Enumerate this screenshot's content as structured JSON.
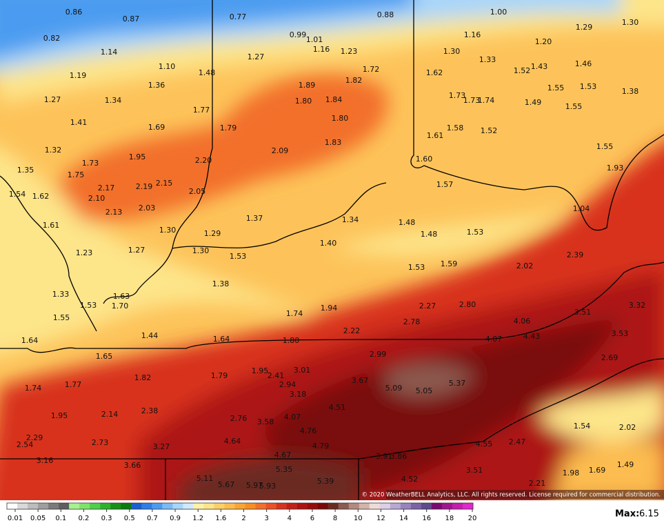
{
  "map": {
    "labels": [
      "0.86",
      "0.87",
      "0.77",
      "0.88",
      "1.00",
      "1.29",
      "1.30",
      "0.82",
      "0.99",
      "1.01",
      "1.16",
      "1.23",
      "1.16",
      "1.20",
      "1.14",
      "1.27",
      "1.30",
      "1.33",
      "1.46",
      "1.10",
      "1.48",
      "1.72",
      "1.62",
      "1.52",
      "1.43",
      "1.19",
      "1.36",
      "1.89",
      "1.82",
      "1.55",
      "1.53",
      "1.38",
      "1.27",
      "1.34",
      "1.80",
      "1.84",
      "1.73",
      "1.73",
      "1.74",
      "1.49",
      "1.55",
      "1.77",
      "1.80",
      "1.41",
      "1.69",
      "1.79",
      "1.58",
      "1.52",
      "1.61",
      "1.83",
      "1.55",
      "1.32",
      "2.09",
      "1.95",
      "2.20",
      "1.60",
      "1.93",
      "1.73",
      "1.35",
      "1.75",
      "2.15",
      "1.57",
      "2.17",
      "2.19",
      "2.05",
      "1.54",
      "1.62",
      "2.10",
      "2.13",
      "2.03",
      "1.04",
      "1.37",
      "1.34",
      "1.48",
      "1.61",
      "1.30",
      "1.29",
      "1.48",
      "1.53",
      "1.40",
      "1.23",
      "1.27",
      "1.30",
      "1.53",
      "2.39",
      "1.53",
      "1.59",
      "2.02",
      "1.38",
      "1.33",
      "1.63",
      "1.53",
      "1.70",
      "2.27",
      "2.80",
      "3.32",
      "1.94",
      "1.74",
      "3.51",
      "1.55",
      "2.78",
      "4.06",
      "2.22",
      "1.44",
      "1.64",
      "1.80",
      "4.07",
      "4.43",
      "3.53",
      "1.64",
      "1.65",
      "2.99",
      "2.69",
      "3.01",
      "1.95",
      "2.41",
      "1.79",
      "1.82",
      "3.67",
      "5.37",
      "2.94",
      "1.77",
      "1.74",
      "5.09",
      "5.05",
      "3.18",
      "4.51",
      "2.38",
      "2.14",
      "1.95",
      "2.76",
      "4.07",
      "3.58",
      "1.54",
      "2.02",
      "4.76",
      "2.29",
      "2.73",
      "4.64",
      "4.79",
      "3.27",
      "4.55",
      "2.47",
      "2.54",
      "4.67",
      "3.91",
      "3.86",
      "3.16",
      "3.66",
      "1.49",
      "5.35",
      "3.51",
      "1.98",
      "1.69",
      "4.52",
      "5.11",
      "5.39",
      "5.67",
      "5.97",
      "5.93",
      "2.21"
    ],
    "copyright": "© 2020 WeatherBELL Analytics, LLC. All rights reserved. License required for commercial distribution."
  },
  "legend": {
    "ticks": [
      "0.01",
      "0.05",
      "0.1",
      "0.2",
      "0.3",
      "0.5",
      "0.7",
      "0.9",
      "1.2",
      "1.6",
      "2",
      "3",
      "4",
      "6",
      "8",
      "10",
      "12",
      "14",
      "16",
      "18",
      "20"
    ],
    "colors": [
      "#ffffff",
      "#d9d9d9",
      "#bdbdbd",
      "#9e9e9e",
      "#7a7a7a",
      "#5e5e5e",
      "#a6f28f",
      "#7ee36b",
      "#4fcf4a",
      "#2db22d",
      "#169116",
      "#0c7a0c",
      "#1d5fd1",
      "#2f7ee6",
      "#4b9cf0",
      "#7cbaf6",
      "#a8d6fa",
      "#cfeafc",
      "#fff2a8",
      "#fde58a",
      "#fdd067",
      "#fcbc4f",
      "#f9a535",
      "#f78e23",
      "#f2702a",
      "#ea5225",
      "#d8331f",
      "#c41e18",
      "#ad1212",
      "#950c0c",
      "#7a0808",
      "#6a2a22",
      "#8c5a50",
      "#b38a80",
      "#d4b4aa",
      "#f0dcd6",
      "#dcd0e6",
      "#b8a8d2",
      "#9884bd",
      "#7a64a6",
      "#5e4a8c",
      "#7a0a72",
      "#a0148f",
      "#c41cad",
      "#e028cc"
    ]
  },
  "max": {
    "label": "Max:",
    "value": "6.15"
  }
}
